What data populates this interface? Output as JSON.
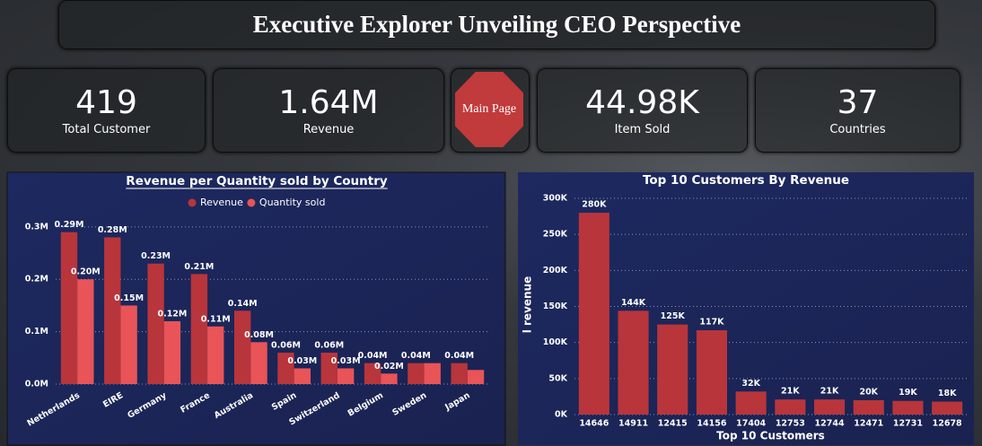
{
  "header": {
    "title": "Executive Explorer Unveiling CEO Perspective"
  },
  "kpis": [
    {
      "value": "419",
      "label": "Total Customer"
    },
    {
      "value": "1.64M",
      "label": "Revenue"
    },
    {
      "value": "44.98K",
      "label": "Item Sold"
    },
    {
      "value": "37",
      "label": "Countries"
    }
  ],
  "nav": {
    "button": "Main Page"
  },
  "chart_data": [
    {
      "type": "grouped-bar",
      "title": "Revenue per Quantity sold by Country",
      "categories": [
        "Netherlands",
        "EIRE",
        "Germany",
        "France",
        "Australia",
        "Spain",
        "Switzerland",
        "Belgium",
        "Sweden",
        "Japan"
      ],
      "series": [
        {
          "name": "Revenue",
          "color": "#b8353b",
          "values": [
            290000,
            280000,
            230000,
            210000,
            140000,
            60000,
            60000,
            40000,
            40000,
            40000
          ],
          "value_labels": [
            "0.29M",
            "0.28M",
            "0.23M",
            "0.21M",
            "0.14M",
            "0.06M",
            "0.06M",
            "0.04M",
            "0.04M",
            "0.04M"
          ]
        },
        {
          "name": "Quantity sold",
          "color": "#e85457",
          "values": [
            200000,
            150000,
            120000,
            110000,
            80000,
            30000,
            30000,
            20000,
            40000,
            27000
          ],
          "value_labels": [
            "0.20M",
            "0.15M",
            "0.12M",
            "0.11M",
            "0.08M",
            "0.03M",
            "0.03M",
            "0.02M",
            null,
            null
          ]
        }
      ],
      "ylim": [
        0,
        322000
      ],
      "yticks": [
        {
          "value": 0,
          "label": "0.0M"
        },
        {
          "value": 100000,
          "label": "0.1M"
        },
        {
          "value": 200000,
          "label": "0.2M"
        },
        {
          "value": 300000,
          "label": "0.3M"
        }
      ],
      "grid": true,
      "legend": "top"
    },
    {
      "type": "bar",
      "title": "Top 10 Customers By Revenue",
      "x_label": "Top 10 Customers",
      "y_label": "l revenue",
      "categories": [
        "14646",
        "14911",
        "12415",
        "14156",
        "17404",
        "12753",
        "12744",
        "12471",
        "12731",
        "12678"
      ],
      "values": [
        280000,
        144000,
        125000,
        117000,
        32000,
        21000,
        21000,
        20000,
        19000,
        18000
      ],
      "value_labels": [
        "280K",
        "144K",
        "125K",
        "117K",
        "32K",
        "21K",
        "21K",
        "20K",
        "19K",
        "18K"
      ],
      "color": "#b8353b",
      "ylim": [
        0,
        305000
      ],
      "yticks": [
        {
          "value": 0,
          "label": "0K"
        },
        {
          "value": 50000,
          "label": "50K"
        },
        {
          "value": 100000,
          "label": "100K"
        },
        {
          "value": 150000,
          "label": "150K"
        },
        {
          "value": 200000,
          "label": "200K"
        },
        {
          "value": 250000,
          "label": "250K"
        },
        {
          "value": 300000,
          "label": "300K"
        }
      ],
      "grid": true
    }
  ]
}
